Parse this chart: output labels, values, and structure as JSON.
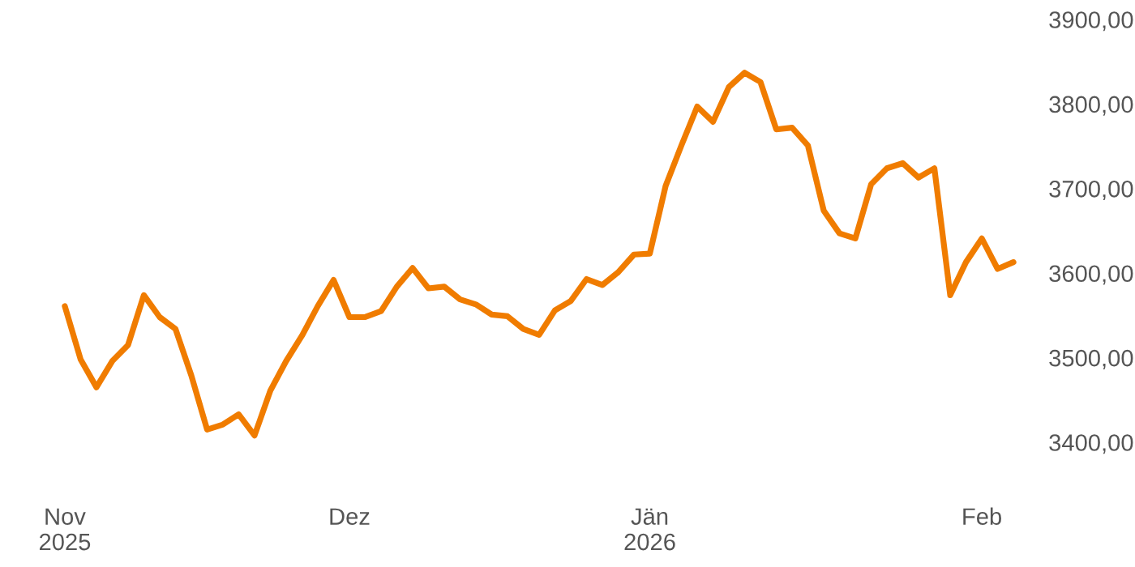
{
  "chart_data": {
    "type": "line",
    "categories": [
      "Nov\n2025",
      null,
      null,
      null,
      null,
      null,
      null,
      null,
      null,
      null,
      null,
      null,
      null,
      null,
      null,
      null,
      null,
      null,
      "Dez",
      null,
      null,
      null,
      null,
      null,
      null,
      null,
      null,
      null,
      null,
      null,
      null,
      null,
      null,
      null,
      null,
      null,
      null,
      "Jän\n2026",
      null,
      null,
      null,
      null,
      null,
      null,
      null,
      null,
      null,
      null,
      null,
      null,
      null,
      null,
      null,
      null,
      null,
      null,
      null,
      null,
      "Feb",
      null,
      null
    ],
    "values": [
      3561,
      3498,
      3465,
      3496,
      3515,
      3574,
      3548,
      3534,
      3479,
      3415,
      3421,
      3433,
      3408,
      3461,
      3496,
      3526,
      3561,
      3592,
      3548,
      3548,
      3555,
      3584,
      3606,
      3582,
      3584,
      3569,
      3563,
      3551,
      3549,
      3534,
      3527,
      3556,
      3567,
      3593,
      3586,
      3601,
      3622,
      3623,
      3703,
      3751,
      3797,
      3779,
      3820,
      3837,
      3826,
      3770,
      3772,
      3751,
      3674,
      3647,
      3641,
      3705,
      3724,
      3730,
      3713,
      3724,
      3574,
      3613,
      3641,
      3605,
      3613
    ],
    "color": "#f07c00",
    "line_style": "solid",
    "ylim": [
      3400,
      3900
    ],
    "yticks": [
      {
        "value": 3400,
        "label": "3400,00"
      },
      {
        "value": 3500,
        "label": "3500,00"
      },
      {
        "value": 3600,
        "label": "3600,00"
      },
      {
        "value": 3700,
        "label": "3700,00"
      },
      {
        "value": 3800,
        "label": "3800,00"
      },
      {
        "value": 3900,
        "label": "3900,00"
      }
    ],
    "grid": false
  }
}
